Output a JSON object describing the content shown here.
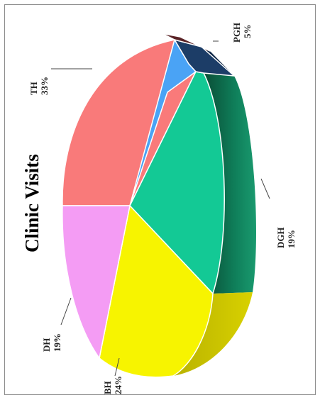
{
  "chart_data": {
    "type": "pie",
    "title": "Clinic Visits",
    "three_d": true,
    "orientation": "rotated-90-counterclockwise",
    "slices": [
      {
        "label": "TH",
        "percent_text": "33%",
        "value": 33,
        "color": "#f97a7a",
        "side_color": "#b85252"
      },
      {
        "label": "DH",
        "percent_text": "19%",
        "value": 19,
        "color": "#f49cf4",
        "side_color": "#b06eb0"
      },
      {
        "label": "BH",
        "percent_text": "24%",
        "value": 24,
        "color": "#f7f400",
        "side_color": "#c9c000"
      },
      {
        "label": "DGH",
        "percent_text": "19%",
        "value": 19,
        "color": "#13c995",
        "side_color": "#0a6b4c"
      },
      {
        "label": "PGH",
        "percent_text": "5%",
        "value": 5,
        "color": "#1c3d67",
        "side_color": "#132b4a"
      },
      {
        "label": "",
        "percent_text": "",
        "value": 2,
        "color": "#4aa3f5",
        "side_color": "#2f6fae"
      },
      {
        "label": "",
        "percent_text": "",
        "value": 1,
        "color": "#5a2326",
        "side_color": "#3a1517"
      }
    ],
    "legend": "none",
    "grid": false
  }
}
